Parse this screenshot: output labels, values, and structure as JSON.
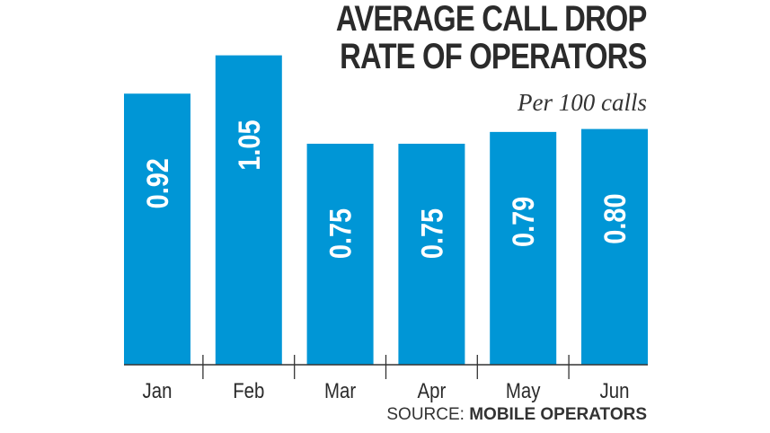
{
  "chart_data": {
    "type": "bar",
    "title": "AVERAGE CALL DROP RATE OF OPERATORS",
    "title_lines": [
      "AVERAGE CALL DROP",
      "RATE OF OPERATORS"
    ],
    "subtitle": "Per 100 calls",
    "categories": [
      "Jan",
      "Feb",
      "Mar",
      "Apr",
      "May",
      "Jun"
    ],
    "values": [
      0.92,
      1.05,
      0.75,
      0.75,
      0.79,
      0.8
    ],
    "data_labels": [
      "0.92",
      "1.05",
      "0.75",
      "0.75",
      "0.79",
      "0.80"
    ],
    "ylim": [
      0,
      1.24
    ],
    "grid": false,
    "bar_color": "#0096d6",
    "source_prefix": "SOURCE:",
    "source_name": "MOBILE OPERATORS"
  }
}
